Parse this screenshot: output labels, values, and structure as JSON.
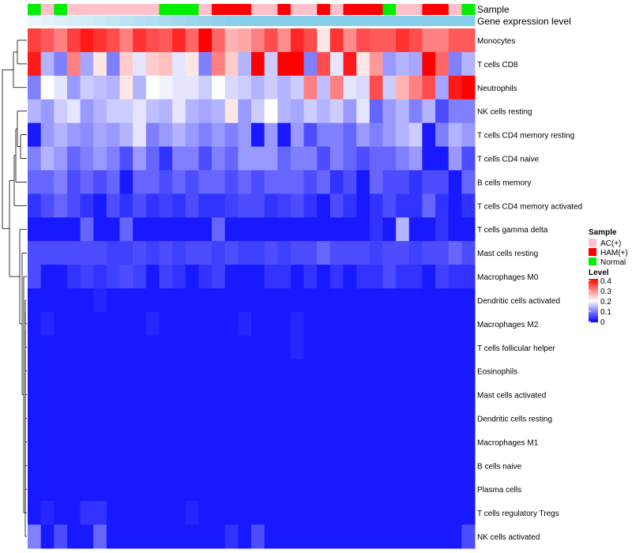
{
  "chart_data": {
    "type": "heatmap",
    "title": "",
    "annotation_tracks": [
      "Sample",
      "Gene expression level"
    ],
    "row_labels": [
      "Monocytes",
      "T cells CD8",
      "Neutrophils",
      "NK cells resting",
      "T cells CD4 memory resting",
      "T cells CD4 naive",
      "B cells memory",
      "T cells CD4 memory activated",
      "T cells gamma delta",
      "Mast cells resting",
      "Macrophages M0",
      "Dendritic cells activated",
      "Macrophages M2",
      "T cells follicular helper",
      "Eosinophils",
      "Mast cells activated",
      "Dendritic cells resting",
      "Macrophages M1",
      "B cells naive",
      "Plasma cells",
      "T cells regulatory  Tregs",
      "NK cells activated"
    ],
    "n_columns": 34,
    "sample_groups": [
      "Normal",
      "AC(+)",
      "Normal",
      "AC(+)",
      "AC(+)",
      "AC(+)",
      "AC(+)",
      "AC(+)",
      "AC(+)",
      "AC(+)",
      "Normal",
      "Normal",
      "Normal",
      "AC(+)",
      "HAM(+)",
      "HAM(+)",
      "HAM(+)",
      "AC(+)",
      "AC(+)",
      "HAM(+)",
      "AC(+)",
      "AC(+)",
      "HAM(+)",
      "AC(+)",
      "HAM(+)",
      "HAM(+)",
      "HAM(+)",
      "Normal",
      "AC(+)",
      "AC(+)",
      "HAM(+)",
      "HAM(+)",
      "AC(+)",
      "Normal"
    ],
    "values": [
      [
        0.35,
        0.33,
        0.3,
        0.35,
        0.38,
        0.36,
        0.34,
        0.3,
        0.36,
        0.34,
        0.33,
        0.37,
        0.32,
        0.4,
        0.32,
        0.26,
        0.27,
        0.3,
        0.34,
        0.29,
        0.37,
        0.34,
        0.22,
        0.36,
        0.29,
        0.34,
        0.33,
        0.33,
        0.36,
        0.34,
        0.3,
        0.3,
        0.33,
        0.33
      ],
      [
        0.38,
        0.14,
        0.1,
        0.3,
        0.13,
        0.22,
        0.1,
        0.24,
        0.18,
        0.24,
        0.25,
        0.18,
        0.22,
        0.1,
        0.3,
        0.24,
        0.14,
        0.4,
        0.16,
        0.4,
        0.4,
        0.1,
        0.34,
        0.18,
        0.38,
        0.22,
        0.28,
        0.12,
        0.14,
        0.13,
        0.4,
        0.32,
        0.1,
        0.14
      ],
      [
        0.1,
        0.2,
        0.18,
        0.12,
        0.16,
        0.15,
        0.14,
        0.22,
        0.14,
        0.2,
        0.19,
        0.18,
        0.18,
        0.16,
        0.2,
        0.17,
        0.16,
        0.14,
        0.16,
        0.14,
        0.16,
        0.3,
        0.15,
        0.3,
        0.18,
        0.17,
        0.34,
        0.16,
        0.26,
        0.3,
        0.34,
        0.13,
        0.38,
        0.4
      ],
      [
        0.14,
        0.12,
        0.16,
        0.18,
        0.12,
        0.14,
        0.16,
        0.16,
        0.18,
        0.15,
        0.14,
        0.18,
        0.14,
        0.13,
        0.14,
        0.22,
        0.12,
        0.16,
        0.2,
        0.14,
        0.13,
        0.16,
        0.14,
        0.16,
        0.12,
        0.18,
        0.08,
        0.12,
        0.14,
        0.1,
        0.14,
        0.06,
        0.1,
        0.1
      ],
      [
        0.02,
        0.12,
        0.14,
        0.12,
        0.11,
        0.13,
        0.12,
        0.14,
        0.18,
        0.1,
        0.12,
        0.14,
        0.12,
        0.1,
        0.12,
        0.1,
        0.12,
        0.02,
        0.12,
        0.02,
        0.12,
        0.06,
        0.1,
        0.1,
        0.08,
        0.12,
        0.1,
        0.12,
        0.14,
        0.16,
        0.02,
        0.1,
        0.14,
        0.12
      ],
      [
        0.1,
        0.14,
        0.12,
        0.08,
        0.1,
        0.12,
        0.1,
        0.06,
        0.12,
        0.08,
        0.04,
        0.1,
        0.1,
        0.06,
        0.1,
        0.08,
        0.12,
        0.12,
        0.12,
        0.08,
        0.1,
        0.1,
        0.06,
        0.1,
        0.08,
        0.06,
        0.08,
        0.08,
        0.1,
        0.12,
        0.02,
        0.02,
        0.12,
        0.06
      ],
      [
        0.08,
        0.08,
        0.1,
        0.06,
        0.08,
        0.06,
        0.08,
        0.02,
        0.08,
        0.08,
        0.06,
        0.08,
        0.06,
        0.08,
        0.08,
        0.06,
        0.08,
        0.06,
        0.08,
        0.08,
        0.08,
        0.06,
        0.08,
        0.04,
        0.06,
        0.02,
        0.08,
        0.06,
        0.06,
        0.04,
        0.06,
        0.06,
        0.02,
        0.08
      ],
      [
        0.04,
        0.06,
        0.08,
        0.06,
        0.04,
        0.02,
        0.06,
        0.04,
        0.06,
        0.04,
        0.05,
        0.04,
        0.06,
        0.04,
        0.04,
        0.05,
        0.06,
        0.06,
        0.04,
        0.05,
        0.06,
        0.04,
        0.02,
        0.06,
        0.04,
        0.02,
        0.04,
        0.06,
        0.04,
        0.04,
        0.08,
        0.04,
        0.02,
        0.04
      ],
      [
        0.02,
        0.02,
        0.02,
        0.02,
        0.08,
        0.02,
        0.02,
        0.08,
        0.02,
        0.02,
        0.02,
        0.02,
        0.02,
        0.02,
        0.08,
        0.02,
        0.02,
        0.02,
        0.02,
        0.02,
        0.02,
        0.02,
        0.02,
        0.02,
        0.02,
        0.02,
        0.04,
        0.02,
        0.14,
        0.02,
        0.02,
        0.04,
        0.02,
        0.02
      ],
      [
        0.06,
        0.06,
        0.06,
        0.06,
        0.06,
        0.06,
        0.05,
        0.05,
        0.06,
        0.05,
        0.06,
        0.05,
        0.06,
        0.06,
        0.05,
        0.06,
        0.05,
        0.05,
        0.06,
        0.05,
        0.06,
        0.06,
        0.08,
        0.06,
        0.06,
        0.06,
        0.05,
        0.06,
        0.06,
        0.05,
        0.06,
        0.06,
        0.08,
        0.06
      ],
      [
        0.06,
        0.02,
        0.02,
        0.04,
        0.05,
        0.04,
        0.05,
        0.06,
        0.05,
        0.02,
        0.05,
        0.04,
        0.02,
        0.04,
        0.05,
        0.02,
        0.02,
        0.02,
        0.04,
        0.04,
        0.02,
        0.04,
        0.02,
        0.04,
        0.02,
        0.04,
        0.04,
        0.06,
        0.04,
        0.04,
        0.02,
        0.05,
        0.04,
        0.04
      ],
      [
        0.02,
        0.02,
        0.02,
        0.02,
        0.02,
        0.03,
        0.02,
        0.02,
        0.02,
        0.02,
        0.02,
        0.02,
        0.02,
        0.02,
        0.02,
        0.02,
        0.02,
        0.02,
        0.02,
        0.02,
        0.02,
        0.02,
        0.02,
        0.02,
        0.02,
        0.02,
        0.02,
        0.02,
        0.02,
        0.02,
        0.02,
        0.02,
        0.02,
        0.02
      ],
      [
        0.02,
        0.03,
        0.02,
        0.02,
        0.02,
        0.02,
        0.02,
        0.02,
        0.02,
        0.03,
        0.02,
        0.02,
        0.02,
        0.02,
        0.02,
        0.02,
        0.03,
        0.02,
        0.02,
        0.02,
        0.03,
        0.02,
        0.02,
        0.02,
        0.02,
        0.02,
        0.02,
        0.02,
        0.02,
        0.02,
        0.02,
        0.02,
        0.02,
        0.02
      ],
      [
        0.02,
        0.02,
        0.02,
        0.02,
        0.02,
        0.02,
        0.02,
        0.02,
        0.02,
        0.02,
        0.02,
        0.02,
        0.02,
        0.02,
        0.02,
        0.02,
        0.02,
        0.02,
        0.02,
        0.02,
        0.03,
        0.02,
        0.02,
        0.02,
        0.02,
        0.02,
        0.02,
        0.02,
        0.02,
        0.02,
        0.02,
        0.02,
        0.02,
        0.02
      ],
      [
        0.02,
        0.02,
        0.02,
        0.02,
        0.02,
        0.02,
        0.02,
        0.02,
        0.02,
        0.02,
        0.02,
        0.02,
        0.02,
        0.02,
        0.02,
        0.02,
        0.02,
        0.02,
        0.02,
        0.02,
        0.02,
        0.02,
        0.02,
        0.02,
        0.02,
        0.02,
        0.02,
        0.02,
        0.02,
        0.02,
        0.02,
        0.02,
        0.02,
        0.02
      ],
      [
        0.02,
        0.02,
        0.02,
        0.02,
        0.02,
        0.02,
        0.02,
        0.02,
        0.02,
        0.02,
        0.02,
        0.02,
        0.02,
        0.02,
        0.02,
        0.02,
        0.02,
        0.02,
        0.02,
        0.02,
        0.02,
        0.02,
        0.02,
        0.02,
        0.02,
        0.02,
        0.02,
        0.02,
        0.02,
        0.02,
        0.02,
        0.02,
        0.02,
        0.02
      ],
      [
        0.02,
        0.02,
        0.02,
        0.02,
        0.02,
        0.02,
        0.02,
        0.02,
        0.02,
        0.02,
        0.02,
        0.02,
        0.02,
        0.02,
        0.02,
        0.02,
        0.02,
        0.02,
        0.02,
        0.02,
        0.02,
        0.02,
        0.02,
        0.02,
        0.02,
        0.02,
        0.02,
        0.02,
        0.02,
        0.02,
        0.02,
        0.02,
        0.02,
        0.02
      ],
      [
        0.02,
        0.02,
        0.02,
        0.02,
        0.02,
        0.02,
        0.02,
        0.02,
        0.02,
        0.02,
        0.02,
        0.02,
        0.02,
        0.02,
        0.02,
        0.02,
        0.02,
        0.02,
        0.02,
        0.02,
        0.02,
        0.02,
        0.02,
        0.02,
        0.02,
        0.02,
        0.02,
        0.02,
        0.02,
        0.02,
        0.02,
        0.02,
        0.02,
        0.02
      ],
      [
        0.02,
        0.02,
        0.02,
        0.02,
        0.02,
        0.02,
        0.02,
        0.02,
        0.02,
        0.02,
        0.02,
        0.02,
        0.02,
        0.02,
        0.02,
        0.02,
        0.02,
        0.02,
        0.02,
        0.02,
        0.02,
        0.02,
        0.02,
        0.02,
        0.02,
        0.02,
        0.02,
        0.02,
        0.02,
        0.02,
        0.02,
        0.02,
        0.02,
        0.02
      ],
      [
        0.02,
        0.02,
        0.02,
        0.02,
        0.02,
        0.02,
        0.02,
        0.02,
        0.02,
        0.02,
        0.02,
        0.02,
        0.02,
        0.02,
        0.02,
        0.02,
        0.02,
        0.02,
        0.02,
        0.02,
        0.02,
        0.02,
        0.02,
        0.02,
        0.02,
        0.02,
        0.02,
        0.02,
        0.02,
        0.02,
        0.02,
        0.02,
        0.02,
        0.02
      ],
      [
        0.02,
        0.03,
        0.02,
        0.02,
        0.04,
        0.04,
        0.02,
        0.02,
        0.02,
        0.02,
        0.02,
        0.02,
        0.03,
        0.02,
        0.02,
        0.02,
        0.02,
        0.02,
        0.02,
        0.02,
        0.02,
        0.02,
        0.02,
        0.02,
        0.02,
        0.02,
        0.02,
        0.02,
        0.02,
        0.02,
        0.02,
        0.02,
        0.02,
        0.02
      ],
      [
        0.1,
        0.02,
        0.06,
        0.02,
        0.02,
        0.08,
        0.02,
        0.02,
        0.02,
        0.02,
        0.02,
        0.02,
        0.02,
        0.02,
        0.02,
        0.04,
        0.02,
        0.06,
        0.02,
        0.02,
        0.02,
        0.02,
        0.02,
        0.02,
        0.02,
        0.02,
        0.02,
        0.02,
        0.02,
        0.02,
        0.02,
        0.02,
        0.02,
        0.06
      ]
    ],
    "legend": {
      "sample_title": "Sample",
      "sample_entries": [
        "AC(+)",
        "HAM(+)",
        "Normal"
      ],
      "level_title": "Level",
      "level_ticks": [
        "0.4",
        "0.3",
        "0.2",
        "0.1",
        "0"
      ],
      "level_range": [
        0,
        0.4
      ],
      "placement": "right"
    },
    "dendrogram": "rows clustered (left)"
  },
  "colors": {
    "AC(+)": "#ffc0cb",
    "HAM(+)": "#ff0000",
    "Normal": "#00ee00",
    "expression_track": "#87ceeb",
    "expression_track_light": "#eaf6fb",
    "scale_low": "#0000ff",
    "scale_mid": "#ffffff",
    "scale_high": "#ff0000"
  }
}
